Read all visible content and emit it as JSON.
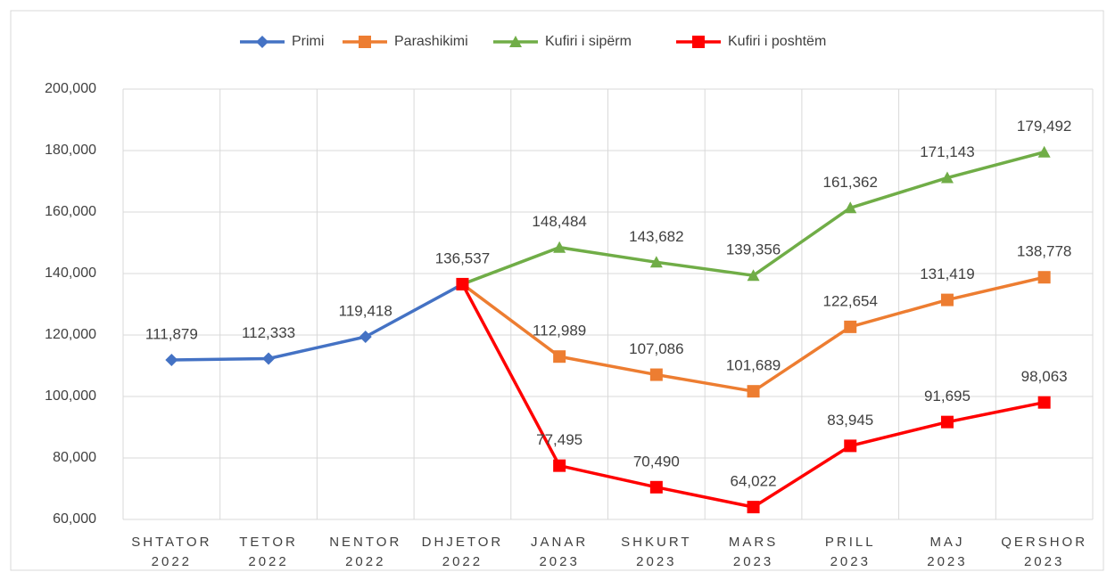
{
  "chart_data": {
    "type": "line",
    "categories": [
      "SHTATOR 2022",
      "TETOR 2022",
      "NENTOR 2022",
      "DHJETOR 2022",
      "JANAR 2023",
      "SHKURT 2023",
      "MARS 2023",
      "PRILL 2023",
      "MAJ 2023",
      "QERSHOR 2023"
    ],
    "series": [
      {
        "name": "Primi",
        "color": "#4472c4",
        "marker": "diamond",
        "values": [
          111879,
          112333,
          119418,
          136537,
          null,
          null,
          null,
          null,
          null,
          null
        ],
        "value_labels": [
          "111,879",
          "112,333",
          "119,418",
          "136,537",
          null,
          null,
          null,
          null,
          null,
          null
        ]
      },
      {
        "name": "Parashikimi",
        "color": "#ed7d31",
        "marker": "square",
        "values": [
          null,
          null,
          null,
          136537,
          112989,
          107086,
          101689,
          122654,
          131419,
          138778
        ],
        "value_labels": [
          null,
          null,
          null,
          null,
          "112,989",
          "107,086",
          "101,689",
          "122,654",
          "131,419",
          "138,778"
        ]
      },
      {
        "name": "Kufiri i sipërm",
        "color": "#70ad47",
        "marker": "triangle",
        "values": [
          null,
          null,
          null,
          136537,
          148484,
          143682,
          139356,
          161362,
          171143,
          179492
        ],
        "value_labels": [
          null,
          null,
          null,
          null,
          "148,484",
          "143,682",
          "139,356",
          "161,362",
          "171,143",
          "179,492"
        ]
      },
      {
        "name": "Kufiri i poshtëm",
        "color": "#ff0000",
        "marker": "square",
        "values": [
          null,
          null,
          null,
          136537,
          77495,
          70490,
          64022,
          83945,
          91695,
          98063
        ],
        "value_labels": [
          null,
          null,
          null,
          null,
          "77,495",
          "70,490",
          "64,022",
          "83,945",
          "91,695",
          "98,063"
        ]
      }
    ],
    "ylim": [
      60000,
      200000
    ],
    "yticks": [
      {
        "value": 60000,
        "label": "60,000"
      },
      {
        "value": 80000,
        "label": "80,000"
      },
      {
        "value": 100000,
        "label": "100,000"
      },
      {
        "value": 120000,
        "label": "120,000"
      },
      {
        "value": 140000,
        "label": "140,000"
      },
      {
        "value": 160000,
        "label": "160,000"
      },
      {
        "value": 180000,
        "label": "180,000"
      },
      {
        "value": 200000,
        "label": "200,000"
      }
    ],
    "grid": true,
    "legend": "top"
  }
}
